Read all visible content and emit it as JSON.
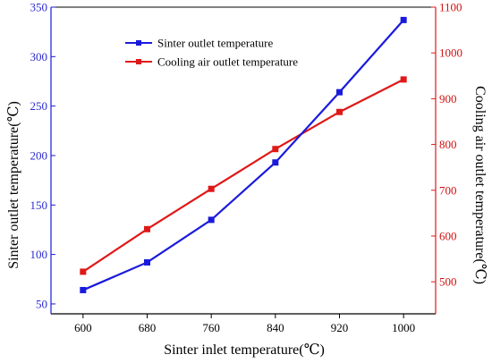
{
  "chart_data": {
    "type": "line",
    "xlabel": "Sinter inlet temperature(℃)",
    "ylabel_left": "Sinter outlet temperature(℃)",
    "ylabel_right": "Cooling air outlet temperature(℃)",
    "x": [
      600,
      680,
      760,
      840,
      920,
      1000
    ],
    "x_tick_labels": [
      "600",
      "680",
      "760",
      "840",
      "920",
      "1000"
    ],
    "ylim_left": [
      40,
      350
    ],
    "yticks_left": [
      "50",
      "100",
      "150",
      "200",
      "250",
      "300",
      "350"
    ],
    "ylim_right": [
      430,
      1100
    ],
    "yticks_right": [
      "500",
      "600",
      "700",
      "800",
      "900",
      "1000",
      "1100"
    ],
    "grid": false,
    "legend_position": "upper-center",
    "series": [
      {
        "name": "Sinter outlet temperature",
        "axis": "left",
        "color": "#1a1adc",
        "marker": "square",
        "values": [
          64,
          92,
          135,
          193,
          264,
          337
        ]
      },
      {
        "name": "Cooling air outlet temperature",
        "axis": "right",
        "color": "#e01818",
        "marker": "square",
        "values": [
          522,
          615,
          703,
          790,
          871,
          942
        ]
      }
    ]
  }
}
